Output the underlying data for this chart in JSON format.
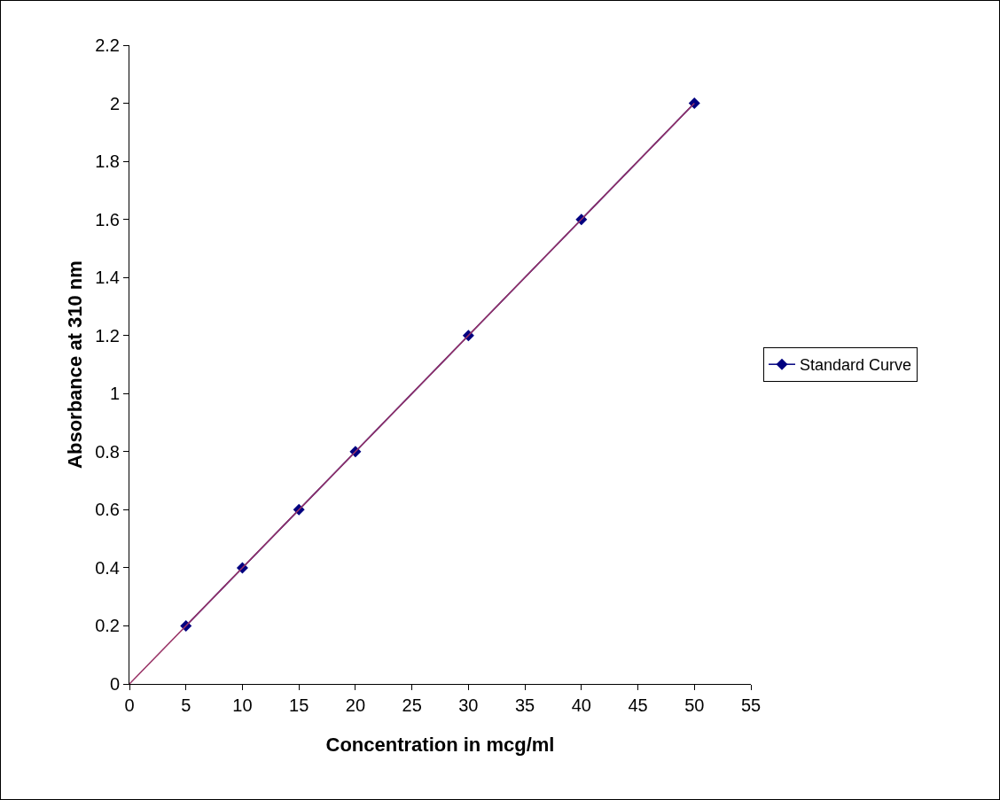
{
  "chart_data": {
    "type": "line",
    "xlabel": "Concentration in mcg/ml",
    "ylabel": "Absorbance at 310 nm",
    "series": [
      {
        "name": "Standard Curve",
        "color": "#000080",
        "x": [
          5,
          10,
          15,
          20,
          30,
          40,
          50
        ],
        "values": [
          0.2,
          0.4,
          0.6,
          0.8,
          1.2,
          1.6,
          2
        ],
        "marker": "diamond"
      },
      {
        "type": "line",
        "color": "#993366",
        "x": [
          0,
          50
        ],
        "values": [
          0,
          2
        ],
        "marker": "none"
      }
    ],
    "xlim": [
      0,
      55
    ],
    "xticks": [
      0,
      5,
      10,
      15,
      20,
      25,
      30,
      35,
      40,
      45,
      50,
      55
    ],
    "ylim": [
      0,
      2.2
    ],
    "yticks": [
      0,
      0.2,
      0.4,
      0.6,
      0.8,
      1,
      1.2,
      1.4,
      1.6,
      1.8,
      2,
      2.2
    ],
    "grid": false,
    "legend": "right",
    "line_style": "solid"
  }
}
